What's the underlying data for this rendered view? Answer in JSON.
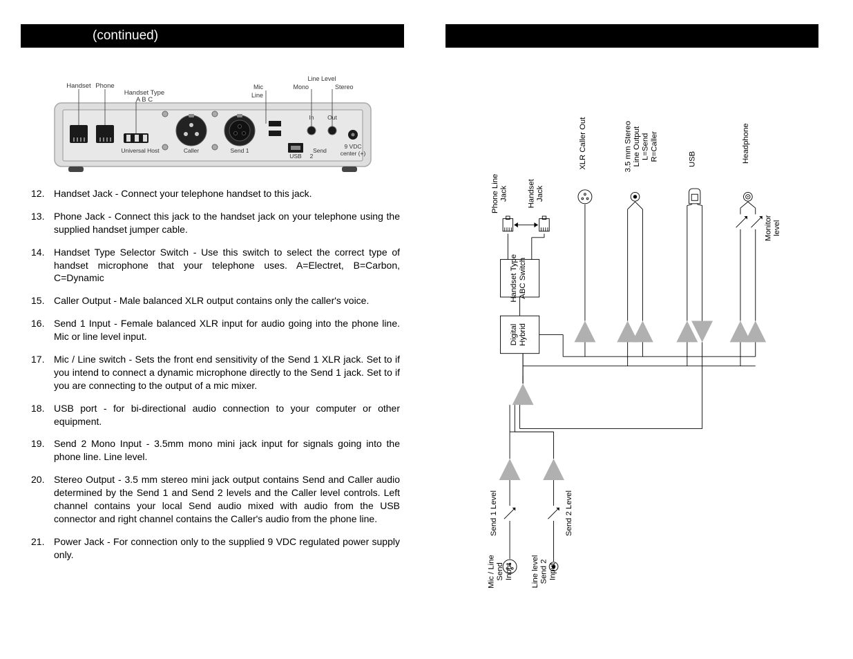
{
  "left": {
    "header": "(continued)",
    "panel": {
      "labels": {
        "handset": "Handset",
        "phone": "Phone",
        "handset_type": "Handset Type",
        "abc": "A  B  C",
        "universal_host": "Universal Host",
        "caller": "Caller",
        "send1": "Send 1",
        "mic": "Mic",
        "line": "Line",
        "usb": "USB",
        "send2": "Send",
        "two": "2",
        "line_level": "Line Level",
        "mono": "Mono",
        "stereo": "Stereo",
        "in": "In",
        "out": "Out",
        "vdc": "9 VDC",
        "center": "center (+)"
      },
      "colors": {
        "body": "#dedede",
        "body_stroke": "#a8a8a8",
        "face": "#e8e8e8",
        "dark": "#2a2a2a",
        "text": "#333333",
        "line": "#555555"
      }
    },
    "items": [
      {
        "n": "12.",
        "text": "Handset Jack - Connect your telephone handset to this jack."
      },
      {
        "n": "13.",
        "text": "Phone Jack - Connect this jack to the handset jack on your telephone using the supplied handset jumper cable."
      },
      {
        "n": "14.",
        "text": "Handset Type Selector Switch - Use this switch to select the correct type of handset microphone that your telephone uses. A=Electret, B=Carbon, C=Dynamic"
      },
      {
        "n": "15.",
        "text": "Caller Output - Male balanced XLR output contains only the caller's voice."
      },
      {
        "n": "16.",
        "text": "Send 1 Input - Female balanced XLR input for audio going into the phone line. Mic or line level input."
      },
      {
        "n": "17.",
        "text": "Mic / Line switch - Sets the front end sensitivity of the Send 1 XLR jack. Set to        if you intend to connect a dynamic microphone directly to the Send 1 jack.  Set to        if you are connecting to the output of a  mic mixer."
      },
      {
        "n": "18.",
        "text": "USB port - for bi-directional audio connection to your computer or other equipment."
      },
      {
        "n": "19.",
        "text": "Send 2 Mono Input - 3.5mm mono mini jack input for signals going into the phone line.  Line level."
      },
      {
        "n": "20.",
        "text": "Stereo Output - 3.5 mm stereo mini jack output contains Send and Caller audio determined by the Send 1 and Send 2 levels and the Caller level controls. Left channel contains your local Send audio mixed with audio from the USB connector and right channel contains the Caller's audio from the phone line."
      },
      {
        "n": "21.",
        "text": "Power Jack - For connection only to the supplied 9 VDC regulated power supply only."
      }
    ]
  },
  "right": {
    "header": "",
    "diagram": {
      "labels": {
        "mic_line_send_input": "Mic / Line Send Input",
        "line_level_send2_input": "Line level Send 2 Input",
        "send1_level": "Send 1 Level",
        "send2_level": "Send 2 Level",
        "digital_hybrid": "Digital Hybrid",
        "handset_type_abc": "Handset Type ABC Switch",
        "phone_line_jack": "Phone Line Jack",
        "handset_jack": "Handset Jack",
        "xlr_caller_out": "XLR Caller Out",
        "stereo_line_out": "3.5 mm Stereo Line Output L=Send R=Caller",
        "usb": "USB",
        "headphone": "Headphone",
        "monitor_level": "Monitor level"
      },
      "colors": {
        "line": "#000000",
        "amp_fill": "#b0b0b0",
        "text": "#000000",
        "bg": "#ffffff"
      },
      "amp_size": 34,
      "jack_radius": 10,
      "font_size": 12.5
    }
  }
}
